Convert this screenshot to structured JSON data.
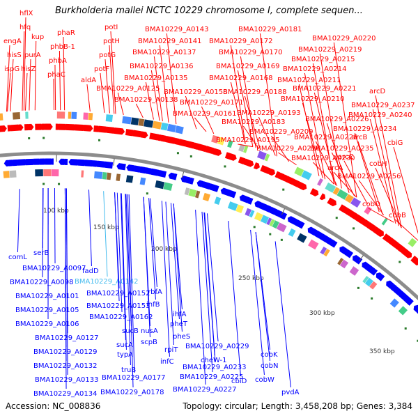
{
  "map": {
    "title": "Burkholderia mallei NCTC 10229 chromosome I, complete sequen...",
    "accession": "Accession: NC_008836",
    "summary": "Topology: circular; Length: 3,458,208 bp; Genes: 3,384",
    "colors": {
      "forward": "#ff0000",
      "reverse": "#0000ff",
      "highlight": "#44bbee",
      "backbone": "#8c8c8c",
      "tick": "#3a8a3a"
    },
    "ticks": [
      "100 kbp",
      "150 kbp",
      "200 kbp",
      "250 kbp",
      "300 kbp",
      "350 kbp"
    ],
    "top_labels": [
      "hflX",
      "hfq",
      "engA",
      "hisS",
      "ispG",
      "hisZ",
      "purA",
      "kup",
      "phaR",
      "phbB-1",
      "phbA",
      "phaC",
      "aldA",
      "potI",
      "potH",
      "potG",
      "potF",
      "BMA10229_A0143",
      "BMA10229_A0141",
      "BMA10229_A0137",
      "BMA10229_A0136",
      "BMA10229_A0135",
      "BMA10229_A0125",
      "BMA10229_A0138",
      "BMA10229_A0161",
      "BMA10229_A0158",
      "BMA10229_A0171",
      "BMA10229_A0168",
      "BMA10229_A0169",
      "BMA10229_A0170",
      "BMA10229_A0172",
      "BMA10229_A0181",
      "BMA10229_A0188",
      "BMA10229_A0193",
      "BMA10229_A0183",
      "BMA10229_A0195",
      "BMA10229_A0209",
      "BMA10229_A0216",
      "BMA10229_A0210",
      "BMA10229_A0221",
      "BMA10229_A0211",
      "BMA10229_A0214",
      "BMA10229_A0215",
      "BMA10229_A0219",
      "BMA10229_A0220",
      "BMA10229_A0226",
      "BMA10229_A0228",
      "BMA10229_A0230",
      "BMA10229_A0235",
      "BMA10229_A0234",
      "BMA10229_A0240",
      "BMA10229_A0237",
      "arcD",
      "arcB",
      "arcC",
      "arcA",
      "cbiG",
      "cobH",
      "BMA10229_A0256",
      "cobO",
      "cobB"
    ],
    "bottom_labels": [
      "comL",
      "serB",
      "BMA10229_A0097",
      "BMA10229_A0098",
      "BMA10229_A0101",
      "BMA10229_A0105",
      "BMA10229_A0106",
      "BMA10229_A0127",
      "BMA10229_A0129",
      "BMA10229_A0132",
      "BMA10229_A0133",
      "BMA10229_A0134",
      "fadD",
      "BMA10229_A0142",
      "BMA10229_A0152",
      "BMA10229_A0153",
      "BMA10229_A0162",
      "rbfA",
      "infB",
      "sucB",
      "sucA",
      "typA",
      "truB",
      "BMA10229_A0177",
      "BMA10229_A0178",
      "nusA",
      "scpB",
      "rpiT",
      "infC",
      "ihfA",
      "pheT",
      "pheS",
      "cheW-1",
      "BMA10229_A0229",
      "BMA10229_A0233",
      "BMA10229_A0225",
      "BMA10229_A0227",
      "cbiD",
      "cobK",
      "cobN",
      "cobW",
      "pvdA"
    ]
  }
}
